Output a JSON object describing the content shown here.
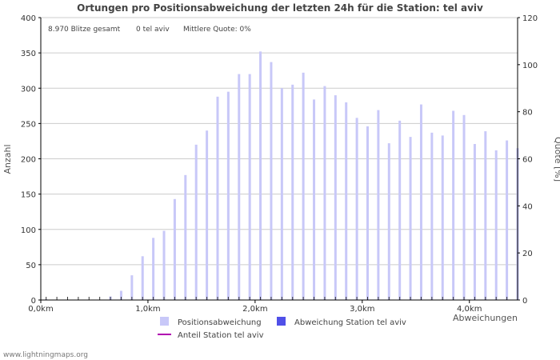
{
  "chart_data": {
    "type": "bar",
    "title": "Ortungen pro Positionsabweichung der letzten 24h für die Station: tel aviv",
    "stats": {
      "total": "8.970 Blitze gesamt",
      "station": "0 tel aviv",
      "quota": "Mittlere Quote: 0%"
    },
    "ylabel": "Anzahl",
    "y2label": "Quote [%]",
    "xlabel": "Abweichungen",
    "ylim": [
      0,
      400
    ],
    "y2lim": [
      0,
      120
    ],
    "yticks": [
      "0",
      "50",
      "100",
      "150",
      "200",
      "250",
      "300",
      "350",
      "400"
    ],
    "y2ticks": [
      "0",
      "20",
      "40",
      "60",
      "80",
      "100",
      "120"
    ],
    "xlim": [
      0,
      4.45
    ],
    "xticks": [
      {
        "value": 0,
        "label": "0,0km"
      },
      {
        "value": 1,
        "label": "1,0km"
      },
      {
        "value": 2,
        "label": "2,0km"
      },
      {
        "value": 3,
        "label": "3,0km"
      },
      {
        "value": 4,
        "label": "4,0km"
      }
    ],
    "bin_width_km": 0.1,
    "series": [
      {
        "name": "Positionsabweichung",
        "color": "#c8c8f8",
        "values": [
          1,
          0,
          0,
          0,
          0,
          0,
          5,
          13,
          35,
          62,
          88,
          98,
          143,
          177,
          220,
          240,
          288,
          295,
          320,
          320,
          352,
          337,
          300,
          305,
          322,
          284,
          303,
          290,
          280,
          258,
          246,
          269,
          222,
          254,
          231,
          277,
          237,
          233,
          268,
          262,
          221,
          239,
          212,
          226,
          215
        ]
      },
      {
        "name": "Abweichung Station tel aviv",
        "color": "#5050e8",
        "values": [
          0,
          0,
          0,
          0,
          0,
          0,
          0,
          0,
          0,
          0,
          0,
          0,
          0,
          0,
          0,
          0,
          0,
          0,
          0,
          0,
          0,
          0,
          0,
          0,
          0,
          0,
          0,
          0,
          0,
          0,
          0,
          0,
          0,
          0,
          0,
          0,
          0,
          0,
          0,
          0,
          0,
          0,
          0,
          0,
          0
        ]
      },
      {
        "name": "Anteil Station tel aviv",
        "color": "#b000b0",
        "type": "line",
        "values": []
      }
    ]
  },
  "footer": "www.lightningmaps.org",
  "colors": {
    "grid": "#cccccc",
    "axis": "#000000",
    "tick_mark": "#000000"
  }
}
